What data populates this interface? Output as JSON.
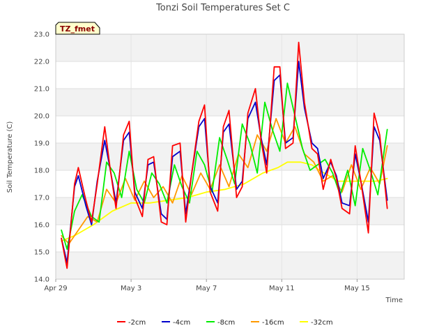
{
  "chart_data": {
    "type": "line",
    "title": "Tonzi Soil Temperatures Set C",
    "xlabel": "Time",
    "ylabel": "Soil Temperature (C)",
    "ylim": [
      14.0,
      23.0
    ],
    "xlim": [
      0,
      18.5
    ],
    "yticks": [
      "14.0",
      "15.0",
      "16.0",
      "17.0",
      "18.0",
      "19.0",
      "20.0",
      "21.0",
      "22.0",
      "23.0"
    ],
    "xticks": [
      {
        "label": "Apr 29",
        "value": 0
      },
      {
        "label": "May 3",
        "value": 4
      },
      {
        "label": "May 7",
        "value": 8
      },
      {
        "label": "May 11",
        "value": 12
      },
      {
        "label": "May 15",
        "value": 16
      }
    ],
    "grid": "horizontal alternating bands",
    "legend_position": "bottom",
    "badge": "TZ_fmet",
    "x_unit": "days since Apr 29",
    "series": [
      {
        "name": "-2cm",
        "color": "#ff0000",
        "x": [
          0.3,
          0.6,
          1.0,
          1.2,
          1.6,
          1.9,
          2.2,
          2.6,
          2.9,
          3.2,
          3.6,
          3.9,
          4.2,
          4.6,
          4.9,
          5.2,
          5.6,
          5.9,
          6.2,
          6.6,
          6.9,
          7.2,
          7.6,
          7.9,
          8.2,
          8.6,
          8.9,
          9.2,
          9.6,
          9.9,
          10.2,
          10.6,
          10.9,
          11.2,
          11.6,
          11.9,
          12.2,
          12.6,
          12.9,
          13.2,
          13.6,
          13.9,
          14.2,
          14.6,
          14.9,
          15.2,
          15.6,
          15.9,
          16.2,
          16.6,
          16.9,
          17.2,
          17.6
        ],
        "y": [
          15.5,
          14.4,
          17.5,
          18.1,
          16.9,
          16.1,
          17.5,
          19.6,
          18.0,
          16.6,
          19.3,
          19.8,
          17.0,
          16.3,
          18.4,
          18.5,
          16.1,
          16.0,
          18.9,
          19.0,
          16.1,
          17.8,
          19.8,
          20.4,
          17.2,
          16.5,
          19.6,
          20.2,
          17.0,
          17.4,
          20.1,
          21.0,
          19.1,
          17.9,
          21.8,
          21.8,
          18.8,
          19.0,
          22.7,
          20.5,
          18.8,
          18.6,
          17.3,
          18.4,
          17.7,
          16.6,
          16.4,
          18.9,
          17.6,
          15.7,
          20.1,
          19.3,
          16.6
        ]
      },
      {
        "name": "-4cm",
        "color": "#0000cc",
        "x": [
          0.3,
          0.6,
          1.0,
          1.2,
          1.6,
          1.9,
          2.2,
          2.6,
          2.9,
          3.2,
          3.6,
          3.9,
          4.2,
          4.6,
          4.9,
          5.2,
          5.6,
          5.9,
          6.2,
          6.6,
          6.9,
          7.2,
          7.6,
          7.9,
          8.2,
          8.6,
          8.9,
          9.2,
          9.6,
          9.9,
          10.2,
          10.6,
          10.9,
          11.2,
          11.6,
          11.9,
          12.2,
          12.6,
          12.9,
          13.2,
          13.6,
          13.9,
          14.2,
          14.6,
          14.9,
          15.2,
          15.6,
          15.9,
          16.2,
          16.6,
          16.9,
          17.2,
          17.6
        ],
        "y": [
          15.5,
          14.6,
          17.4,
          17.8,
          16.7,
          16.0,
          17.6,
          19.1,
          18.0,
          16.8,
          19.1,
          19.4,
          17.2,
          16.6,
          18.2,
          18.3,
          16.4,
          16.2,
          18.5,
          18.7,
          16.4,
          17.8,
          19.6,
          19.9,
          17.4,
          16.8,
          19.4,
          19.7,
          17.3,
          17.6,
          19.9,
          20.5,
          19.2,
          18.2,
          21.3,
          21.5,
          19.0,
          19.2,
          22.0,
          20.3,
          19.0,
          18.8,
          17.7,
          18.3,
          17.8,
          16.8,
          16.7,
          18.6,
          17.6,
          16.1,
          19.6,
          19.1,
          16.9
        ]
      },
      {
        "name": "-8cm",
        "color": "#00ee00",
        "x": [
          0.3,
          0.6,
          1.0,
          1.4,
          1.9,
          2.3,
          2.7,
          3.1,
          3.5,
          3.9,
          4.3,
          4.7,
          5.1,
          5.5,
          5.9,
          6.3,
          6.7,
          7.1,
          7.5,
          7.9,
          8.3,
          8.7,
          9.1,
          9.5,
          9.9,
          10.3,
          10.7,
          11.1,
          11.5,
          11.9,
          12.3,
          12.7,
          13.1,
          13.5,
          13.9,
          14.3,
          14.7,
          15.1,
          15.5,
          15.9,
          16.3,
          16.7,
          17.1,
          17.6
        ],
        "y": [
          15.8,
          15.1,
          16.5,
          17.1,
          16.3,
          16.1,
          18.3,
          17.9,
          17.0,
          18.7,
          17.3,
          16.8,
          17.9,
          17.5,
          16.8,
          18.2,
          17.4,
          16.8,
          18.7,
          18.2,
          17.2,
          19.2,
          18.4,
          17.5,
          19.7,
          19.0,
          17.9,
          20.5,
          19.5,
          18.7,
          21.2,
          20.0,
          18.8,
          18.0,
          18.2,
          18.4,
          17.9,
          17.1,
          18.0,
          16.7,
          18.8,
          18.0,
          17.1,
          19.5
        ]
      },
      {
        "name": "-16cm",
        "color": "#ff9900",
        "x": [
          0.3,
          0.7,
          1.2,
          1.7,
          2.2,
          2.7,
          3.2,
          3.7,
          4.2,
          4.7,
          5.2,
          5.7,
          6.2,
          6.7,
          7.2,
          7.7,
          8.2,
          8.7,
          9.2,
          9.7,
          10.2,
          10.7,
          11.2,
          11.7,
          12.2,
          12.7,
          13.2,
          13.7,
          14.2,
          14.7,
          15.2,
          15.7,
          16.2,
          16.7,
          17.2,
          17.6
        ],
        "y": [
          15.6,
          15.3,
          15.8,
          16.3,
          16.1,
          17.3,
          16.8,
          17.7,
          16.9,
          17.6,
          17.0,
          17.4,
          16.8,
          17.8,
          17.1,
          17.9,
          17.3,
          18.2,
          17.4,
          18.6,
          18.1,
          19.3,
          18.7,
          19.9,
          19.0,
          19.6,
          18.6,
          18.3,
          17.6,
          17.8,
          17.2,
          18.2,
          17.3,
          18.1,
          17.5,
          18.9
        ]
      },
      {
        "name": "-32cm",
        "color": "#ffff00",
        "x": [
          0.3,
          1.0,
          2.0,
          3.0,
          4.0,
          5.0,
          6.0,
          7.0,
          8.0,
          9.0,
          10.0,
          11.0,
          11.8,
          12.3,
          13.0,
          13.6,
          14.0,
          14.5,
          15.0,
          15.5,
          16.0,
          16.5,
          17.0,
          17.6
        ],
        "y": [
          15.4,
          15.6,
          16.0,
          16.5,
          16.8,
          16.8,
          16.9,
          17.0,
          17.2,
          17.3,
          17.5,
          17.9,
          18.1,
          18.3,
          18.3,
          18.2,
          18.0,
          17.8,
          17.6,
          17.6,
          17.6,
          17.6,
          17.6,
          17.7
        ]
      }
    ]
  }
}
